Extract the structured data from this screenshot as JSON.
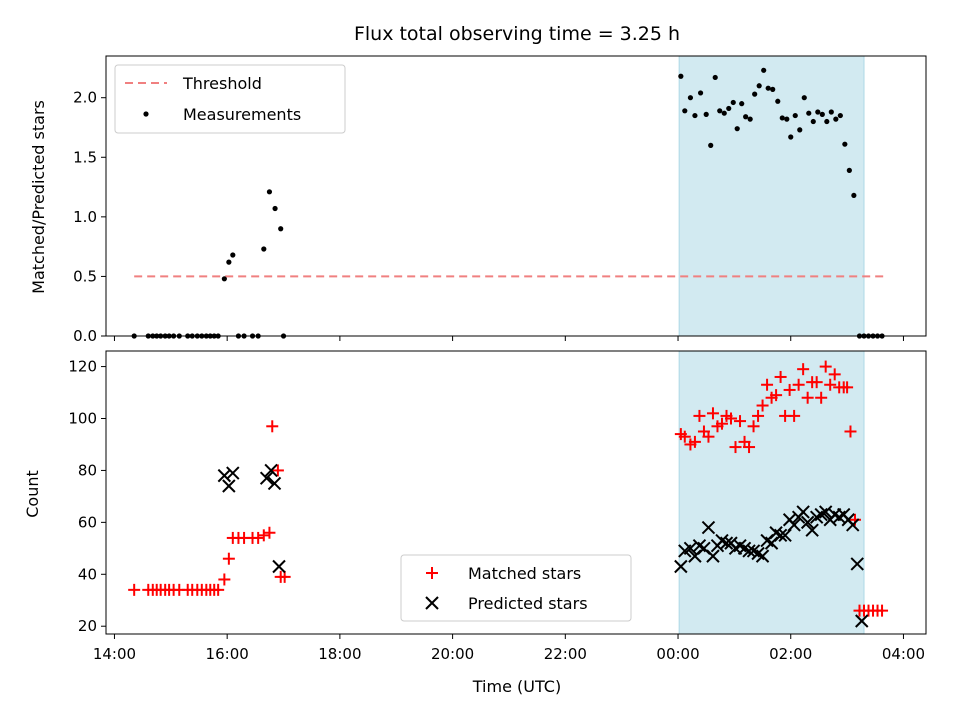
{
  "chart_data": [
    {
      "type": "scatter",
      "title": "Flux total observing time = 3.25 h",
      "xlabel": "",
      "ylabel": "Matched/Predicted stars",
      "xlim_hours": [
        13.85,
        28.4
      ],
      "ylim": [
        0,
        2.35
      ],
      "yticks": [
        0.0,
        0.5,
        1.0,
        1.5,
        2.0
      ],
      "ytick_labels": [
        "0.0",
        "0.5",
        "1.0",
        "1.5",
        "2.0"
      ],
      "xticks_hours": [
        14,
        16,
        18,
        20,
        22,
        24,
        26,
        28
      ],
      "shaded_span_hours": [
        24.02,
        27.3
      ],
      "shade_color": "#add8e6",
      "legend_position": "upper-left",
      "legend": [
        {
          "label": "Threshold",
          "marker": "dashed-line",
          "color": "#f08080"
        },
        {
          "label": "Measurements",
          "marker": "dot",
          "color": "#000000"
        }
      ],
      "threshold": {
        "value": 0.5,
        "x_start": 14.35,
        "x_end": 27.7,
        "color": "#f08080"
      },
      "series": [
        {
          "name": "Measurements",
          "color": "#000000",
          "points": [
            [
              14.35,
              0
            ],
            [
              14.6,
              0
            ],
            [
              14.68,
              0
            ],
            [
              14.75,
              0
            ],
            [
              14.82,
              0
            ],
            [
              14.9,
              0
            ],
            [
              14.97,
              0
            ],
            [
              15.05,
              0
            ],
            [
              15.15,
              0
            ],
            [
              15.3,
              0
            ],
            [
              15.38,
              0
            ],
            [
              15.47,
              0
            ],
            [
              15.55,
              0
            ],
            [
              15.63,
              0
            ],
            [
              15.7,
              0
            ],
            [
              15.77,
              0
            ],
            [
              15.84,
              0
            ],
            [
              15.95,
              0.48
            ],
            [
              16.03,
              0.62
            ],
            [
              16.1,
              0.68
            ],
            [
              16.2,
              0
            ],
            [
              16.3,
              0
            ],
            [
              16.45,
              0
            ],
            [
              16.55,
              0
            ],
            [
              16.65,
              0.73
            ],
            [
              16.75,
              1.21
            ],
            [
              16.85,
              1.07
            ],
            [
              16.95,
              0.9
            ],
            [
              17.0,
              0
            ],
            [
              24.05,
              2.18
            ],
            [
              24.12,
              1.89
            ],
            [
              24.22,
              2.0
            ],
            [
              24.3,
              1.85
            ],
            [
              24.4,
              2.04
            ],
            [
              24.5,
              1.86
            ],
            [
              24.58,
              1.6
            ],
            [
              24.66,
              2.17
            ],
            [
              24.74,
              1.89
            ],
            [
              24.82,
              1.87
            ],
            [
              24.9,
              1.91
            ],
            [
              24.98,
              1.96
            ],
            [
              25.05,
              1.74
            ],
            [
              25.13,
              1.95
            ],
            [
              25.2,
              1.84
            ],
            [
              25.28,
              1.82
            ],
            [
              25.36,
              2.03
            ],
            [
              25.44,
              2.1
            ],
            [
              25.52,
              2.23
            ],
            [
              25.6,
              2.08
            ],
            [
              25.68,
              2.07
            ],
            [
              25.77,
              1.97
            ],
            [
              25.85,
              1.83
            ],
            [
              25.93,
              1.82
            ],
            [
              26.0,
              1.67
            ],
            [
              26.08,
              1.85
            ],
            [
              26.16,
              1.73
            ],
            [
              26.24,
              2.0
            ],
            [
              26.32,
              1.87
            ],
            [
              26.4,
              1.8
            ],
            [
              26.48,
              1.88
            ],
            [
              26.56,
              1.86
            ],
            [
              26.64,
              1.8
            ],
            [
              26.72,
              1.88
            ],
            [
              26.8,
              1.82
            ],
            [
              26.88,
              1.85
            ],
            [
              26.96,
              1.61
            ],
            [
              27.04,
              1.39
            ],
            [
              27.12,
              1.18
            ],
            [
              27.22,
              0
            ],
            [
              27.3,
              0
            ],
            [
              27.38,
              0
            ],
            [
              27.46,
              0
            ],
            [
              27.54,
              0
            ],
            [
              27.62,
              0
            ]
          ]
        }
      ]
    },
    {
      "type": "scatter",
      "title": "",
      "xlabel": "Time (UTC)",
      "ylabel": "Count",
      "xlim_hours": [
        13.85,
        28.4
      ],
      "ylim": [
        17,
        126
      ],
      "yticks": [
        20,
        40,
        60,
        80,
        100,
        120
      ],
      "ytick_labels": [
        "20",
        "40",
        "60",
        "80",
        "100",
        "120"
      ],
      "xticks_hours": [
        14,
        16,
        18,
        20,
        22,
        24,
        26,
        28
      ],
      "xtick_labels": [
        "14:00",
        "16:00",
        "18:00",
        "20:00",
        "22:00",
        "00:00",
        "02:00",
        "04:00"
      ],
      "shaded_span_hours": [
        24.02,
        27.3
      ],
      "legend_position": "lower-center",
      "legend": [
        {
          "label": "Matched stars",
          "marker": "plus",
          "color": "#ff0000"
        },
        {
          "label": "Predicted stars",
          "marker": "x",
          "color": "#000000"
        }
      ],
      "series": [
        {
          "name": "Matched stars",
          "color": "#ff0000",
          "marker": "plus",
          "points": [
            [
              14.35,
              34
            ],
            [
              14.6,
              34
            ],
            [
              14.68,
              34
            ],
            [
              14.75,
              34
            ],
            [
              14.82,
              34
            ],
            [
              14.9,
              34
            ],
            [
              14.97,
              34
            ],
            [
              15.05,
              34
            ],
            [
              15.15,
              34
            ],
            [
              15.3,
              34
            ],
            [
              15.38,
              34
            ],
            [
              15.47,
              34
            ],
            [
              15.55,
              34
            ],
            [
              15.63,
              34
            ],
            [
              15.7,
              34
            ],
            [
              15.77,
              34
            ],
            [
              15.84,
              34
            ],
            [
              15.95,
              38
            ],
            [
              16.03,
              46
            ],
            [
              16.1,
              54
            ],
            [
              16.2,
              54
            ],
            [
              16.3,
              54
            ],
            [
              16.45,
              54
            ],
            [
              16.55,
              54
            ],
            [
              16.65,
              55
            ],
            [
              16.75,
              56
            ],
            [
              16.8,
              97
            ],
            [
              16.9,
              80
            ],
            [
              16.95,
              39
            ],
            [
              17.02,
              39
            ],
            [
              24.05,
              94
            ],
            [
              24.12,
              93
            ],
            [
              24.22,
              90
            ],
            [
              24.3,
              91
            ],
            [
              24.38,
              101
            ],
            [
              24.46,
              95
            ],
            [
              24.54,
              93
            ],
            [
              24.62,
              102
            ],
            [
              24.7,
              97
            ],
            [
              24.78,
              98
            ],
            [
              24.86,
              101
            ],
            [
              24.94,
              100
            ],
            [
              25.02,
              89
            ],
            [
              25.1,
              99
            ],
            [
              25.18,
              91
            ],
            [
              25.26,
              89
            ],
            [
              25.34,
              97
            ],
            [
              25.42,
              101
            ],
            [
              25.5,
              105
            ],
            [
              25.58,
              113
            ],
            [
              25.66,
              108
            ],
            [
              25.74,
              109
            ],
            [
              25.82,
              116
            ],
            [
              25.9,
              101
            ],
            [
              25.98,
              111
            ],
            [
              26.06,
              101
            ],
            [
              26.14,
              113
            ],
            [
              26.22,
              119
            ],
            [
              26.3,
              108
            ],
            [
              26.38,
              114
            ],
            [
              26.46,
              114
            ],
            [
              26.54,
              108
            ],
            [
              26.62,
              120
            ],
            [
              26.7,
              113
            ],
            [
              26.78,
              117
            ],
            [
              26.86,
              112
            ],
            [
              26.94,
              112
            ],
            [
              27.0,
              112
            ],
            [
              27.06,
              95
            ],
            [
              27.14,
              61
            ],
            [
              27.22,
              26
            ],
            [
              27.3,
              26
            ],
            [
              27.38,
              26
            ],
            [
              27.46,
              26
            ],
            [
              27.54,
              26
            ],
            [
              27.62,
              26
            ]
          ]
        },
        {
          "name": "Predicted stars",
          "color": "#000000",
          "marker": "x",
          "points": [
            [
              15.95,
              78
            ],
            [
              16.03,
              74
            ],
            [
              16.1,
              79
            ],
            [
              16.7,
              77
            ],
            [
              16.78,
              80
            ],
            [
              16.84,
              75
            ],
            [
              16.92,
              43
            ],
            [
              24.05,
              43
            ],
            [
              24.12,
              49
            ],
            [
              24.22,
              50
            ],
            [
              24.3,
              47
            ],
            [
              24.38,
              51
            ],
            [
              24.46,
              50
            ],
            [
              24.54,
              58
            ],
            [
              24.62,
              47
            ],
            [
              24.7,
              51
            ],
            [
              24.78,
              53
            ],
            [
              24.86,
              52
            ],
            [
              24.94,
              52
            ],
            [
              25.02,
              50
            ],
            [
              25.1,
              51
            ],
            [
              25.18,
              50
            ],
            [
              25.26,
              49
            ],
            [
              25.34,
              49
            ],
            [
              25.42,
              48
            ],
            [
              25.5,
              47
            ],
            [
              25.58,
              53
            ],
            [
              25.66,
              52
            ],
            [
              25.74,
              56
            ],
            [
              25.82,
              55
            ],
            [
              25.9,
              55
            ],
            [
              25.98,
              61
            ],
            [
              26.06,
              59
            ],
            [
              26.14,
              62
            ],
            [
              26.22,
              64
            ],
            [
              26.3,
              60
            ],
            [
              26.38,
              57
            ],
            [
              26.46,
              62
            ],
            [
              26.54,
              63
            ],
            [
              26.62,
              64
            ],
            [
              26.7,
              61
            ],
            [
              26.78,
              63
            ],
            [
              26.86,
              62
            ],
            [
              26.94,
              63
            ],
            [
              27.02,
              61
            ],
            [
              27.1,
              59
            ],
            [
              27.18,
              44
            ],
            [
              27.26,
              22
            ]
          ]
        }
      ]
    }
  ]
}
